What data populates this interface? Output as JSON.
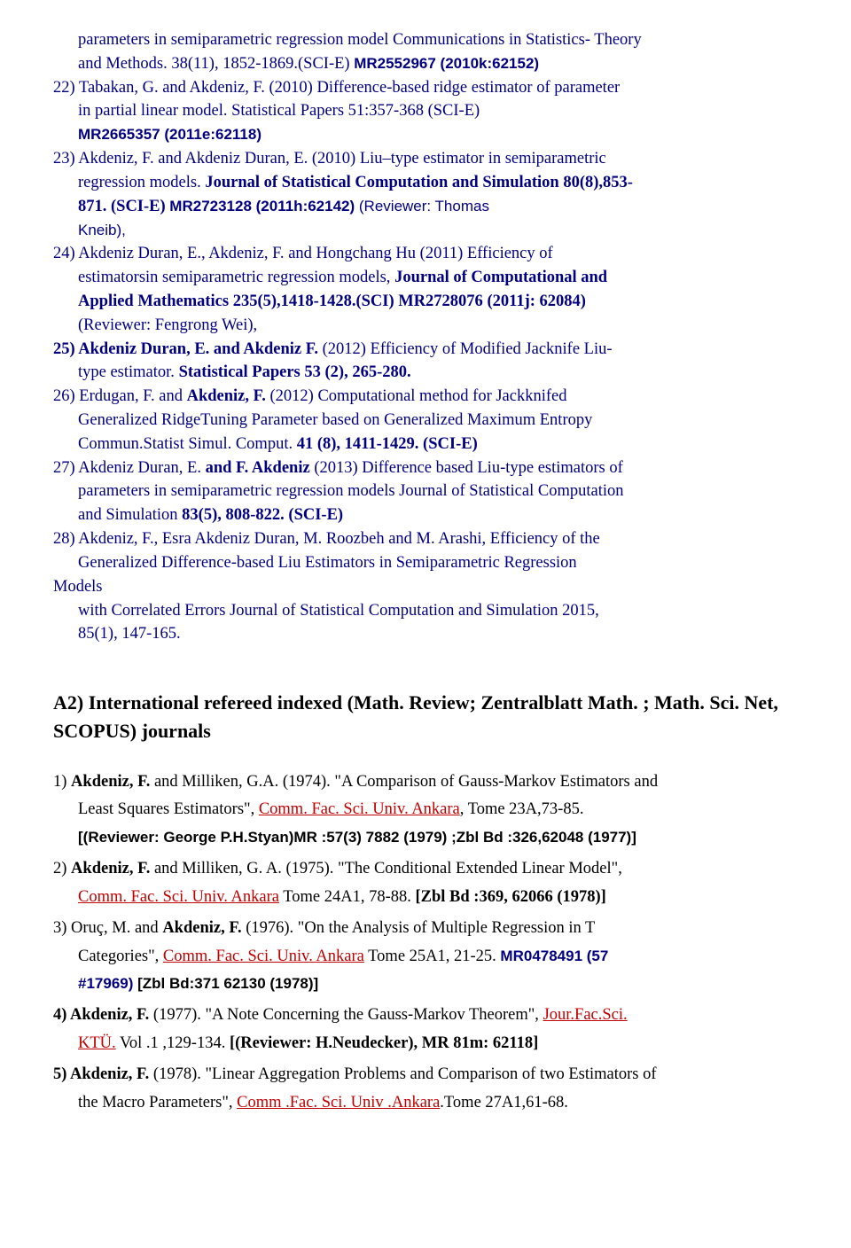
{
  "top": {
    "l1a": "parameters in semiparametric regression model",
    "l1b": " Communications in Statistics- Theory",
    "l2": "and Methods. 38(11), 1852-1869.(SCI-E) ",
    "mr21": "MR2552967 (2010k:62152)"
  },
  "e22": {
    "a": "22) ",
    "b": "Tabakan, G. and Akdeniz, F.",
    "c": " (2010) Difference-based ridge estimator of parameter",
    "d": "in partial linear model. ",
    "e": " Statistical Papers 51:357-368 (SCI-E)",
    "mr": "MR2665357 (2011e:62118)"
  },
  "e23": {
    "a": "23) Akdeniz, F. and Akdeniz Duran, E.",
    "b": " (2010)   Liu–type estimator in semiparametric",
    "c": "regression models. ",
    "d": "Journal of Statistical Computation and Simulation 80(8),853-",
    "e": "871. (SCI-E) ",
    "mr": "MR2723128 (2011h:62142)",
    "f": " (Reviewer: Thomas",
    "g": "Kneib),"
  },
  "e24": {
    "a": "24) Akdeniz Duran, E., Akdeniz, F.",
    "b": " and Hongchang Hu (2011) Efficiency of",
    "c": "estimatorsin  semiparametric regression models, ",
    "d": "Journal of Computational and",
    "e": "Applied Mathematics 235(5),1418-1428.(SCI) MR2728076 ",
    "f": "(2011j: 62084)",
    "g": "(Reviewer: Fengrong Wei),"
  },
  "e25": {
    "a": "25) Akdeniz Duran, E",
    "b": ". and Akdeniz F.",
    "c": " (2012) Efficiency of Modified Jacknife Liu-",
    "d": "type estimator. ",
    "e": "Statistical Papers  53 (2), 265-280."
  },
  "e26": {
    "a": "26) Erdugan, F. and ",
    "b": "Akdeniz, F.",
    "c": " (2012) Computational method for Jackknifed",
    "d": "Generalized RidgeTuning Parameter based on Generalized Maximum Entropy",
    "e": "Commun.Statist Simul.  Comput. ",
    "f": "41 (8), 1411-1429. (SCI-E)"
  },
  "e27": {
    "a": "27) Akdeniz Duran, E. ",
    "b": "and F. Akdeniz",
    "c": " (2013) Difference based Liu-type estimators of",
    "d": "parameters in semiparametric regression models Journal of Statistical Computation",
    "e": "and Simulation ",
    "f": "83(5), 808-822. (SCI-E)"
  },
  "e28": {
    "a": "28) Akdeniz, F., Esra Akdeniz Duran, M. Roozbeh and M. Arashi, Efficiency of the",
    "b": "Generalized Difference-based Liu Estimators in Semiparametric Regression",
    "c": "Models",
    "d": "with Correlated Errors Journal of Statistical Computation  and Simulation 2015,",
    "e": "85(1), 147-165."
  },
  "heading": "A2)    International refereed indexed (Math. Review; Zentralblatt Math. ; Math. Sci. Net, SCOPUS) journals",
  "a1": {
    "a": "1)  ",
    "b": "Akdeniz, F.",
    "c": " and Milliken, G.A. (1974). \"A Comparison of Gauss-Markov Estimators and",
    "d": "Least Squares Estimators\", ",
    "e": "Comm. Fac. Sci. Univ. Ankara",
    "f": ", Tome 23A,73-85.",
    "g": "[(Reviewer: George P.H.Styan)MR :57(3) 7882 (1979) ;",
    "h": "Zbl Bd :326,62048 (1977)]"
  },
  "a2": {
    "a": "2)  ",
    "b": "Akdeniz, F.",
    "c": " and Milliken, G. A. (1975). \"The Conditional  Extended Linear Model\",",
    "d": "Comm. Fac. Sci. Univ. Ankara",
    "e": " Tome 24A1, 78-88. ",
    "f": "[Zbl Bd :369, 62066 (1978)]"
  },
  "a3": {
    "a": "3)  Oruç, M. and ",
    "b": "Akdeniz, F.",
    "c": " (1976). \"On the Analysis of Multiple Regression in T",
    "d": "Categories\", ",
    "e": "Comm. Fac. Sci. Univ. Ankara",
    "f": " Tome 25A1, 21-25. ",
    "mr": "MR0478491 (57",
    "mr2": "#17969)",
    "g": " [Zbl Bd:371  62130 (1978)]"
  },
  "a4": {
    "a": "4) Akdeniz, F.",
    "b": " (1977). \"A Note Concerning the Gauss-Markov Theorem\", ",
    "c": "Jour.Fac.Sci.",
    "d": "KTÜ.",
    "e": " Vol .1 ,129-134. ",
    "f": "[(Reviewer: H.Neudecker), MR 81m: 62118]"
  },
  "a5": {
    "a": "5) Akdeniz, F.",
    "b": " (1978). \"Linear Aggregation Problems and Comparison of two Estimators of",
    "c": "the Macro Parameters\", ",
    "d": "Comm .Fac. Sci. Univ .Ankara",
    "e": ".Tome 27A1,61-68."
  }
}
